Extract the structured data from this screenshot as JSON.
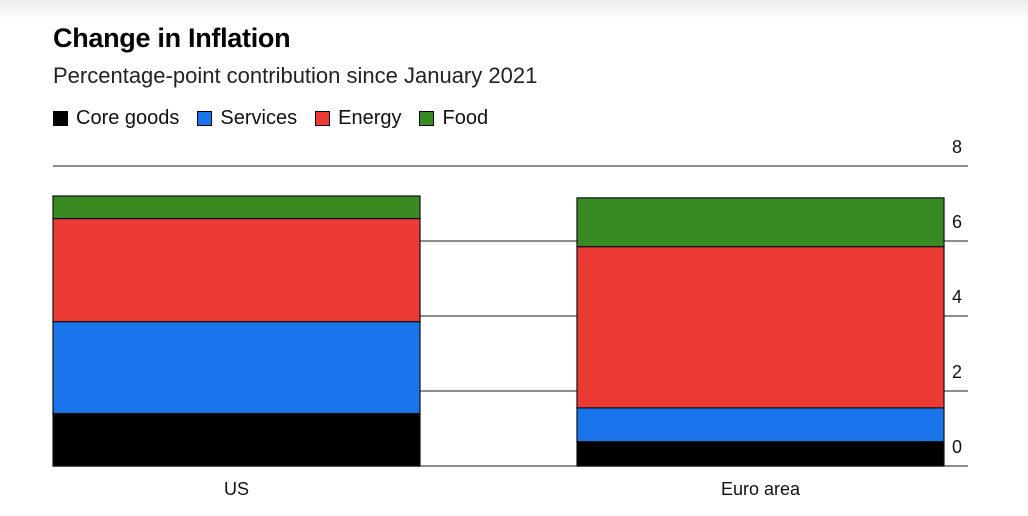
{
  "chart_data": {
    "type": "bar",
    "stacked": true,
    "title": "Change in Inflation",
    "subtitle": "Percentage-point contribution since January 2021",
    "categories": [
      "US",
      "Euro area"
    ],
    "series": [
      {
        "name": "Core goods",
        "color": "#000000",
        "values": [
          1.4,
          0.65
        ]
      },
      {
        "name": "Services",
        "color": "#1a74ec",
        "values": [
          2.45,
          0.9
        ]
      },
      {
        "name": "Energy",
        "color": "#ec3a34",
        "values": [
          2.75,
          4.3
        ]
      },
      {
        "name": "Food",
        "color": "#3a8a24",
        "values": [
          0.6,
          1.3
        ]
      }
    ],
    "yticks": [
      "0",
      "2",
      "4",
      "6",
      "8"
    ],
    "ylim": [
      0,
      8
    ],
    "grid": true,
    "yaxis_position": "right",
    "legend_position": "top-left"
  }
}
